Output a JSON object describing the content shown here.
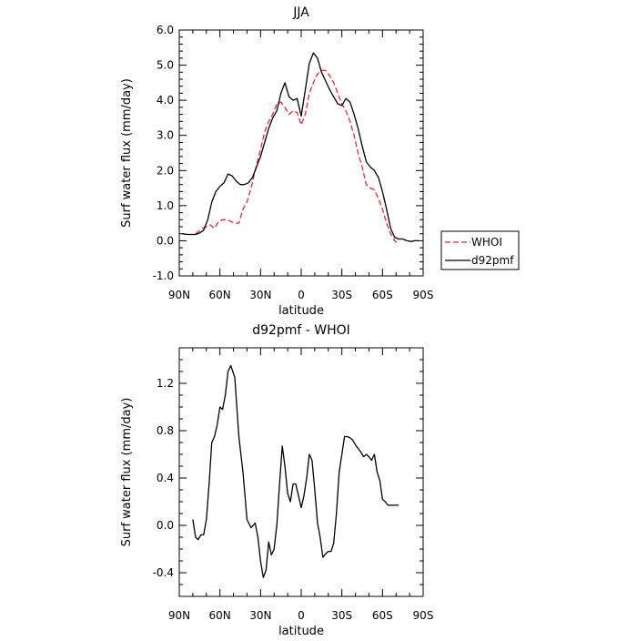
{
  "chart_data": [
    {
      "type": "line",
      "title": "JJA",
      "xlabel": "latitude",
      "ylabel": "Surf water flux (mm/day)",
      "xlim": [
        90,
        -90
      ],
      "ylim": [
        -1.0,
        6.0
      ],
      "xticks": [
        90,
        60,
        30,
        0,
        -30,
        -60,
        -90
      ],
      "xtick_labels": [
        "90N",
        "60N",
        "30N",
        "0",
        "30S",
        "60S",
        "90S"
      ],
      "yticks": [
        -1.0,
        0.0,
        1.0,
        2.0,
        3.0,
        4.0,
        5.0,
        6.0
      ],
      "ytick_labels": [
        "-1.0",
        "0.0",
        "1.0",
        "2.0",
        "3.0",
        "4.0",
        "5.0",
        "6.0"
      ],
      "grid": false,
      "legend": "outside-right",
      "series": [
        {
          "name": "WHOI",
          "color": "#e8262b",
          "dash": true,
          "x": [
            78,
            73,
            70,
            67,
            64,
            61,
            58,
            55,
            52,
            49,
            46,
            43,
            40,
            37,
            34,
            30,
            27,
            24,
            21,
            18,
            15,
            12,
            9,
            6,
            3,
            0,
            -3,
            -6,
            -9,
            -12,
            -15,
            -18,
            -21,
            -24,
            -27,
            -30,
            -33,
            -36,
            -39,
            -42,
            -45,
            -48,
            -51,
            -54,
            -57,
            -60,
            -63,
            -66,
            -69,
            -72
          ],
          "y": [
            0.2,
            0.35,
            0.4,
            0.45,
            0.35,
            0.55,
            0.6,
            0.6,
            0.55,
            0.5,
            0.5,
            0.9,
            1.1,
            1.5,
            2.0,
            2.6,
            3.1,
            3.4,
            3.6,
            3.9,
            3.95,
            3.8,
            3.6,
            3.7,
            3.65,
            3.3,
            3.6,
            4.2,
            4.5,
            4.75,
            4.85,
            4.85,
            4.7,
            4.5,
            4.2,
            3.9,
            3.7,
            3.4,
            3.0,
            2.5,
            2.1,
            1.6,
            1.5,
            1.45,
            1.2,
            0.9,
            0.5,
            0.2,
            0.0,
            -0.1
          ]
        },
        {
          "name": "d92pmf",
          "color": "#000000",
          "dash": false,
          "x": [
            88,
            84,
            81,
            78,
            75,
            72,
            69,
            66,
            63,
            60,
            57,
            54,
            51,
            48,
            45,
            42,
            39,
            36,
            33,
            30,
            27,
            24,
            21,
            18,
            15,
            12,
            9,
            6,
            3,
            0,
            -3,
            -6,
            -9,
            -12,
            -15,
            -18,
            -21,
            -24,
            -27,
            -30,
            -33,
            -36,
            -39,
            -42,
            -45,
            -48,
            -51,
            -54,
            -57,
            -60,
            -63,
            -66,
            -69,
            -72,
            -75,
            -78,
            -81,
            -84,
            -87
          ],
          "y": [
            0.2,
            0.18,
            0.18,
            0.18,
            0.22,
            0.3,
            0.6,
            1.1,
            1.4,
            1.55,
            1.65,
            1.9,
            1.85,
            1.7,
            1.6,
            1.6,
            1.65,
            1.8,
            2.1,
            2.4,
            2.8,
            3.2,
            3.5,
            3.7,
            4.2,
            4.5,
            4.1,
            4.0,
            4.05,
            3.55,
            4.3,
            5.05,
            5.35,
            5.2,
            4.8,
            4.55,
            4.3,
            4.1,
            3.9,
            3.85,
            4.05,
            3.95,
            3.6,
            3.2,
            2.7,
            2.25,
            2.1,
            2.0,
            1.8,
            1.4,
            0.9,
            0.35,
            0.1,
            0.05,
            0.05,
            0.0,
            -0.02,
            0.0,
            0.0
          ]
        }
      ]
    },
    {
      "type": "line",
      "title": "d92pmf - WHOI",
      "xlabel": "latitude",
      "ylabel": "Surf water flux (mm/day)",
      "xlim": [
        90,
        -90
      ],
      "ylim": [
        -0.6,
        1.5
      ],
      "xticks": [
        90,
        60,
        30,
        0,
        -30,
        -60,
        -90
      ],
      "xtick_labels": [
        "90N",
        "60N",
        "30N",
        "0",
        "30S",
        "60S",
        "90S"
      ],
      "yticks": [
        -0.4,
        0.0,
        0.4,
        0.8,
        1.2
      ],
      "ytick_labels": [
        "-0.4",
        "0.0",
        "0.4",
        "0.8",
        "1.2"
      ],
      "grid": false,
      "series": [
        {
          "color": "#000000",
          "x": [
            80,
            78,
            76,
            74,
            72,
            70,
            68,
            66,
            64,
            62,
            60,
            58,
            56,
            54,
            52,
            49,
            46,
            43,
            40,
            37,
            34,
            32,
            30,
            28,
            26,
            24,
            22,
            20,
            18,
            16,
            14,
            12,
            10,
            8,
            6,
            4,
            2,
            0,
            -2,
            -4,
            -6,
            -8,
            -10,
            -12,
            -14,
            -16,
            -18,
            -20,
            -22,
            -24,
            -26,
            -28,
            -30,
            -32,
            -34,
            -36,
            -38,
            -40,
            -42,
            -44,
            -46,
            -48,
            -50,
            -52,
            -54,
            -56,
            -58,
            -60,
            -62,
            -64,
            -66,
            -68,
            -70,
            -72
          ],
          "y": [
            0.05,
            -0.1,
            -0.12,
            -0.08,
            -0.08,
            0.05,
            0.35,
            0.7,
            0.75,
            0.85,
            1.0,
            0.98,
            1.1,
            1.3,
            1.35,
            1.25,
            0.75,
            0.45,
            0.05,
            -0.02,
            0.02,
            -0.1,
            -0.3,
            -0.44,
            -0.38,
            -0.14,
            -0.25,
            -0.2,
            0.0,
            0.35,
            0.67,
            0.5,
            0.27,
            0.2,
            0.35,
            0.35,
            0.25,
            0.15,
            0.25,
            0.4,
            0.6,
            0.55,
            0.3,
            0.02,
            -0.1,
            -0.27,
            -0.24,
            -0.22,
            -0.22,
            -0.15,
            0.1,
            0.45,
            0.6,
            0.75,
            0.75,
            0.74,
            0.72,
            0.68,
            0.65,
            0.62,
            0.58,
            0.6,
            0.58,
            0.55,
            0.6,
            0.45,
            0.38,
            0.22,
            0.2,
            0.17,
            0.17,
            0.17,
            0.17,
            0.17
          ]
        }
      ]
    }
  ]
}
